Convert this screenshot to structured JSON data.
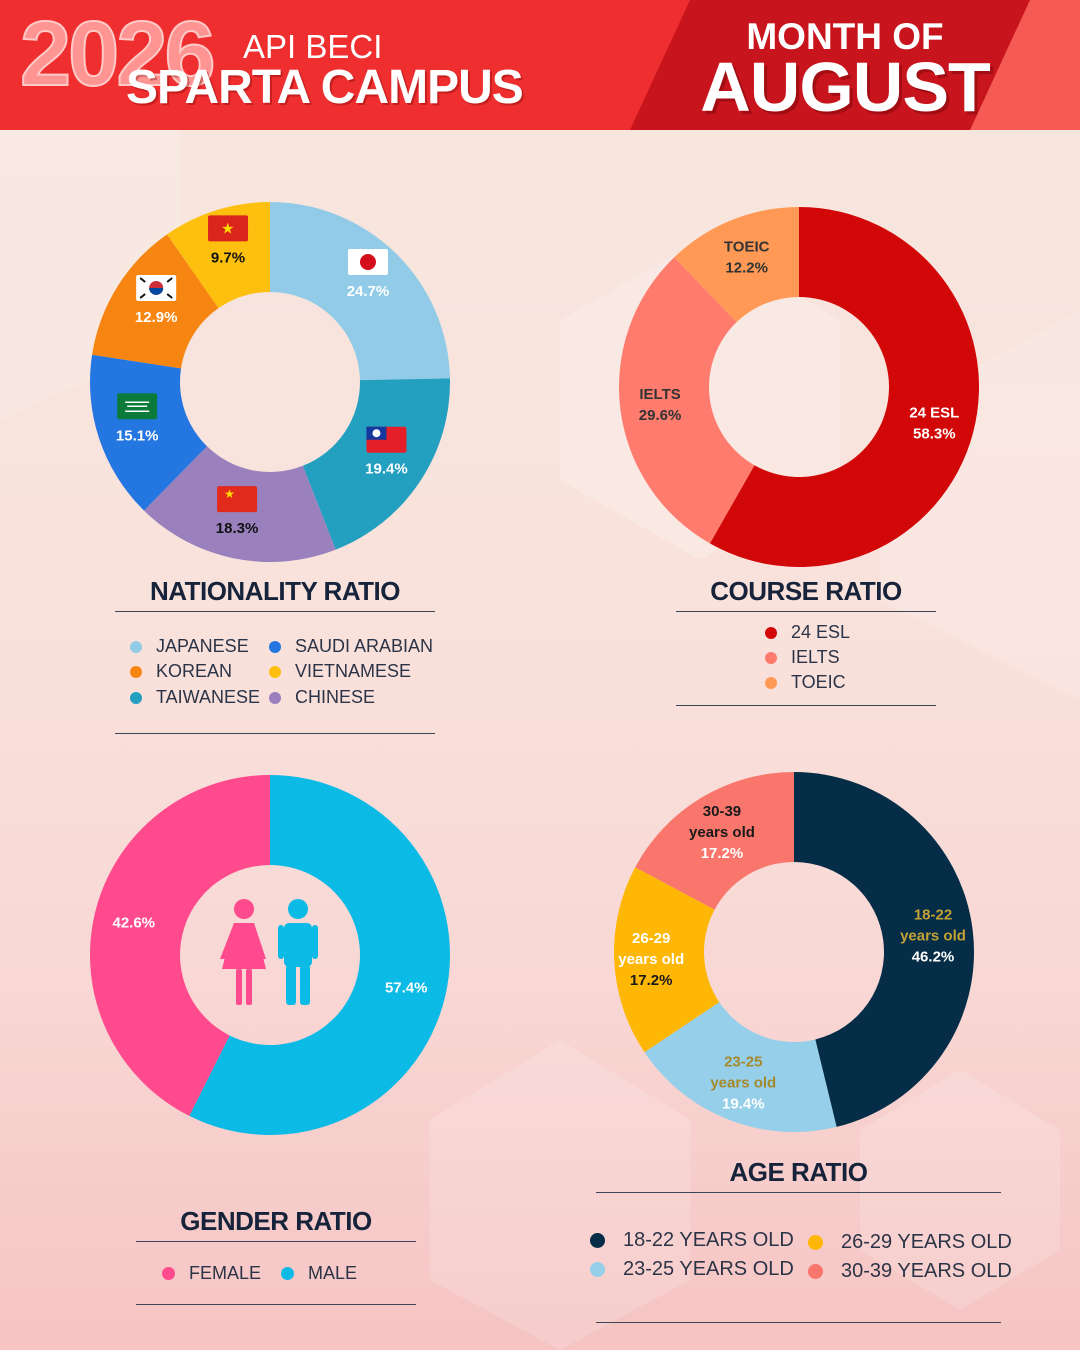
{
  "header": {
    "year": "2026",
    "subtitle": "API BECI",
    "title": "SPARTA CAMPUS",
    "month_label": "MONTH OF",
    "month": "AUGUST",
    "colors": {
      "red": "#ef2e2f",
      "dark_red": "#c8141c",
      "year_pink": "#ff9b98"
    }
  },
  "chart_data": [
    {
      "id": "nationality",
      "type": "pie",
      "title": "NATIONALITY RATIO",
      "categories": [
        "JAPANESE",
        "TAIWANESE",
        "CHINESE",
        "SAUDI ARABIAN",
        "KOREAN",
        "VIETNAMESE"
      ],
      "values": [
        24.7,
        19.4,
        18.3,
        15.1,
        12.9,
        9.7
      ],
      "labels": [
        "24.7%",
        "19.4%",
        "18.3%",
        "15.1%",
        "12.9%",
        "9.7%"
      ],
      "colors": [
        "#92cbe7",
        "#239fbf",
        "#9a80bd",
        "#2476e0",
        "#f68611",
        "#fec00f"
      ],
      "label_colors": [
        "#ffffff",
        "#ffffff",
        "#111111",
        "#ffffff",
        "#ffffff",
        "#111111"
      ],
      "flag_icons": [
        "japan-flag-icon",
        "taiwan-flag-icon",
        "china-flag-icon",
        "saudi-arabia-flag-icon",
        "south-korea-flag-icon",
        "vietnam-flag-icon"
      ],
      "legend": [
        "JAPANESE",
        "KOREAN",
        "TAIWANESE",
        "SAUDI ARABIAN",
        "VIETNAMESE",
        "CHINESE"
      ],
      "legend_colors": [
        "#92cbe7",
        "#f68611",
        "#239fbf",
        "#2476e0",
        "#fec00f",
        "#9a80bd"
      ]
    },
    {
      "id": "course",
      "type": "pie",
      "title": "COURSE RATIO",
      "categories": [
        "24 ESL",
        "IELTS",
        "TOEIC"
      ],
      "values": [
        58.3,
        29.6,
        12.2
      ],
      "labels": [
        [
          "24 ESL",
          "58.3%"
        ],
        [
          "IELTS",
          "29.6%"
        ],
        [
          "TOEIC",
          "12.2%"
        ]
      ],
      "colors": [
        "#d20808",
        "#fe7b6e",
        "#ff9955"
      ],
      "label_colors": [
        "#ffffff",
        "#333333",
        "#333333"
      ],
      "legend": [
        "24 ESL",
        "IELTS",
        "TOEIC"
      ],
      "legend_colors": [
        "#d20808",
        "#fe7b6e",
        "#ff9955"
      ]
    },
    {
      "id": "gender",
      "type": "pie",
      "title": "GENDER RATIO",
      "categories": [
        "MALE",
        "FEMALE"
      ],
      "values": [
        57.4,
        42.6
      ],
      "labels": [
        "57.4%",
        "42.6%"
      ],
      "colors": [
        "#0cbae6",
        "#ff4a8d"
      ],
      "label_colors": [
        "#ffffff",
        "#ffffff"
      ],
      "legend": [
        "FEMALE",
        "MALE"
      ],
      "legend_colors": [
        "#ff4a8d",
        "#0cbae6"
      ]
    },
    {
      "id": "age",
      "type": "pie",
      "title": "AGE RATIO",
      "categories": [
        "18-22 years old",
        "23-25 years old",
        "26-29 years old",
        "30-39 years old"
      ],
      "values": [
        46.2,
        19.4,
        17.2,
        17.2
      ],
      "labels": [
        [
          "18-22",
          "years old",
          "46.2%"
        ],
        [
          "23-25",
          "years old",
          "19.4%"
        ],
        [
          "26-29",
          "years old",
          "17.2%"
        ],
        [
          "30-39",
          "years old",
          "17.2%"
        ]
      ],
      "colors": [
        "#062d47",
        "#95cfe9",
        "#ffb705",
        "#f8766b"
      ],
      "label_colors": [
        [
          "#c2a135",
          "#c2a135",
          "#ffffff"
        ],
        [
          "#a5892c",
          "#a5892c",
          "#ffffff"
        ],
        [
          "#ffffff",
          "#ffffff",
          "#1a1a1a"
        ],
        [
          "#1a1a1a",
          "#1a1a1a",
          "#ffffff"
        ]
      ],
      "legend": [
        "18-22 YEARS OLD",
        "26-29 YEARS OLD",
        "23-25 YEARS OLD",
        "30-39 YEARS OLD"
      ],
      "legend_colors": [
        "#062d47",
        "#ffb705",
        "#95cfe9",
        "#f8766b"
      ]
    }
  ]
}
